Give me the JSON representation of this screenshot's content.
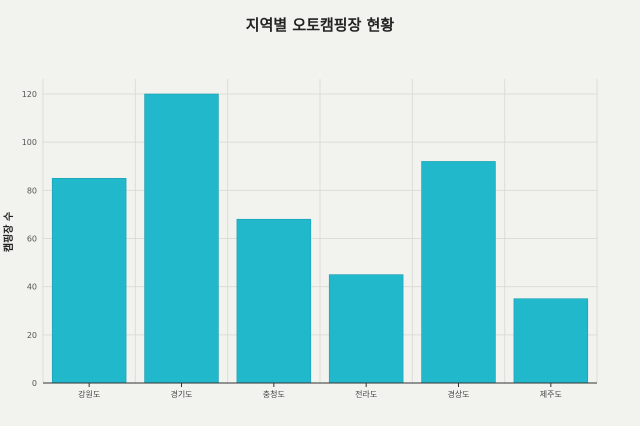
{
  "chart_data": {
    "type": "bar",
    "title": "지역별 오토캠핑장 현황",
    "xlabel": "",
    "ylabel": "캠핑장 수",
    "categories": [
      "강원도",
      "경기도",
      "충청도",
      "전라도",
      "경상도",
      "제주도"
    ],
    "values": [
      85,
      120,
      68,
      45,
      92,
      35
    ],
    "ylim": [
      0,
      120
    ],
    "yticks": [
      0,
      20,
      40,
      60,
      80,
      100,
      120
    ],
    "grid": true,
    "bar_color": "#22b8cc"
  }
}
